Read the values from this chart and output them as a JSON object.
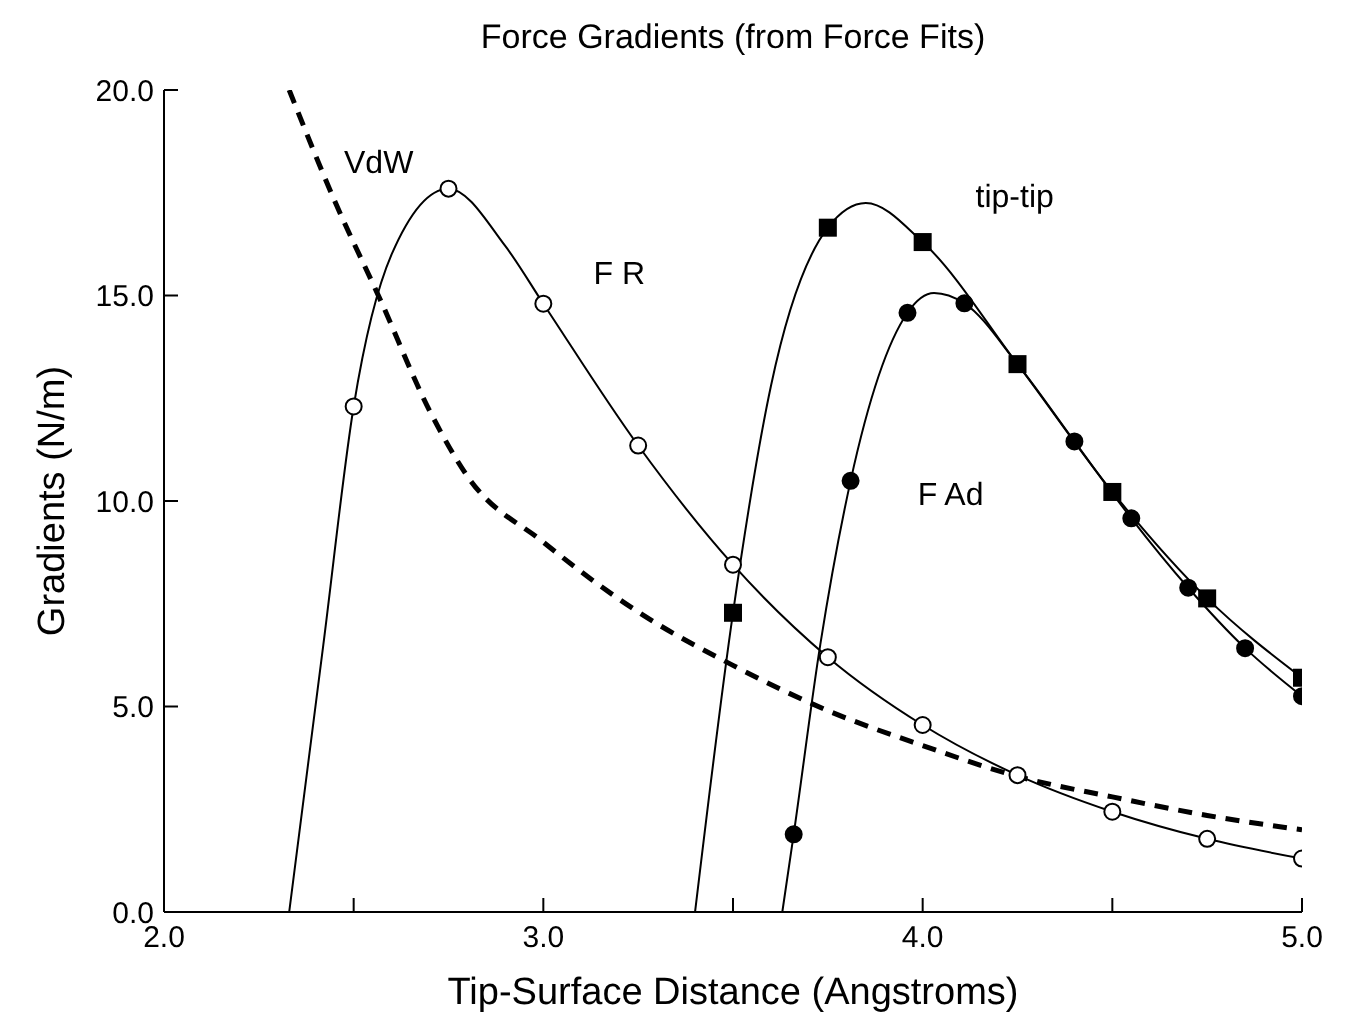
{
  "chart_data": {
    "type": "line",
    "title": "Force Gradients (from Force Fits)",
    "xlabel": "Tip-Surface Distance (Angstroms)",
    "ylabel": "Gradients (N/m)",
    "xlim": [
      2.0,
      5.0
    ],
    "ylim": [
      0.0,
      20.0
    ],
    "xticks": [
      {
        "value": 2.0,
        "label": "2.0"
      },
      {
        "value": 2.5,
        "label": null
      },
      {
        "value": 3.0,
        "label": "3.0"
      },
      {
        "value": 3.5,
        "label": null
      },
      {
        "value": 4.0,
        "label": "4.0"
      },
      {
        "value": 4.5,
        "label": null
      },
      {
        "value": 5.0,
        "label": "5.0"
      }
    ],
    "yticks": [
      {
        "value": 0.0,
        "label": "0.0"
      },
      {
        "value": 5.0,
        "label": "5.0"
      },
      {
        "value": 10.0,
        "label": "10.0"
      },
      {
        "value": 15.0,
        "label": "15.0"
      },
      {
        "value": 20.0,
        "label": "20.0"
      }
    ],
    "grid": false,
    "legend": false,
    "series": [
      {
        "type": "line",
        "name": "VdW",
        "color": "#000000",
        "marker": "none",
        "line_style": "dashed",
        "x": [
          2.33,
          2.45,
          2.57,
          2.7,
          2.8,
          3.0,
          3.25,
          3.5,
          3.75,
          4.0,
          4.25,
          4.5,
          4.75,
          5.0
        ],
        "values": [
          20.0,
          17.3,
          14.9,
          12.2,
          10.6,
          9.0,
          7.3,
          6.0,
          4.9,
          4.05,
          3.3,
          2.8,
          2.35,
          2.0
        ]
      },
      {
        "type": "line",
        "name": "F R",
        "color": "#000000",
        "marker": "none",
        "line_style": "solid",
        "x": [
          2.33,
          2.42,
          2.5,
          2.6,
          2.75,
          2.9,
          3.0,
          3.25,
          3.5,
          3.75,
          4.0,
          4.25,
          4.5,
          4.75,
          5.0
        ],
        "values": [
          0.0,
          6.5,
          12.3,
          16.0,
          17.6,
          16.2,
          14.8,
          11.35,
          8.45,
          6.2,
          4.55,
          3.33,
          2.44,
          1.78,
          1.3
        ]
      },
      {
        "type": "scatter",
        "color": "#ffffff",
        "marker": "circle",
        "x": [
          2.5,
          2.75,
          3.0,
          3.25,
          3.5,
          3.75,
          4.0,
          4.25,
          4.5,
          4.75,
          5.0
        ],
        "values": [
          12.3,
          17.6,
          14.8,
          11.35,
          8.45,
          6.2,
          4.55,
          3.33,
          2.44,
          1.78,
          1.3
        ]
      },
      {
        "type": "line",
        "name": "tip-tip",
        "color": "#000000",
        "marker": "none",
        "line_style": "solid",
        "x": [
          3.4,
          3.5,
          3.6,
          3.75,
          3.85,
          4.0,
          4.25,
          4.5,
          4.75,
          5.0
        ],
        "values": [
          0.0,
          7.28,
          12.8,
          16.65,
          17.25,
          16.3,
          13.33,
          10.22,
          7.63,
          5.7
        ]
      },
      {
        "type": "scatter",
        "color": "#000000",
        "marker": "square",
        "x": [
          3.5,
          3.75,
          4.0,
          4.25,
          4.5,
          4.75,
          5.0
        ],
        "values": [
          7.28,
          16.65,
          16.3,
          13.33,
          10.22,
          7.63,
          5.7
        ]
      },
      {
        "type": "line",
        "name": "F Ad",
        "color": "#000000",
        "marker": "none",
        "line_style": "solid",
        "x": [
          3.63,
          3.66,
          3.73,
          3.81,
          3.96,
          4.03,
          4.11,
          4.25,
          4.4,
          4.55,
          4.7,
          4.85,
          5.0
        ],
        "values": [
          0.0,
          1.89,
          6.5,
          10.49,
          14.58,
          15.06,
          14.81,
          13.33,
          11.45,
          9.58,
          7.89,
          6.42,
          5.25
        ]
      },
      {
        "type": "scatter",
        "color": "#000000",
        "marker": "circle",
        "x": [
          3.66,
          3.81,
          3.96,
          4.11,
          4.25,
          4.4,
          4.55,
          4.7,
          4.85,
          5.0
        ],
        "values": [
          1.89,
          10.49,
          14.58,
          14.81,
          null,
          11.45,
          9.58,
          7.89,
          6.42,
          5.25
        ]
      }
    ]
  }
}
